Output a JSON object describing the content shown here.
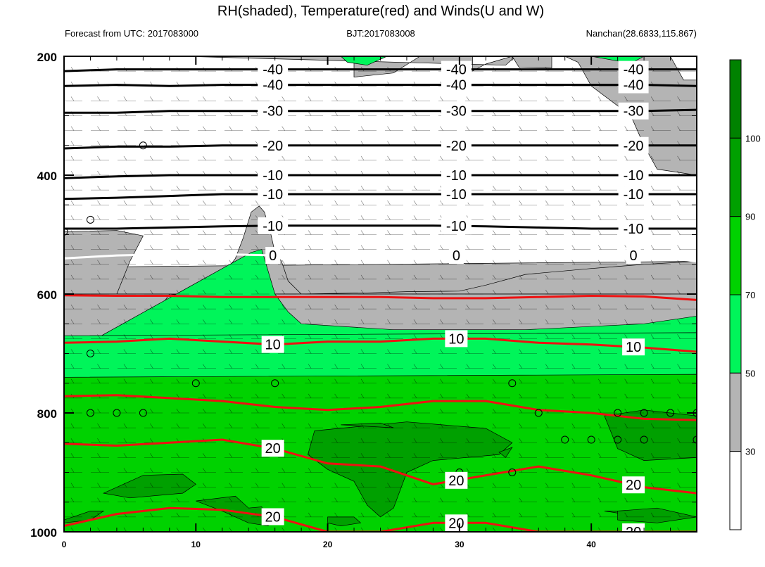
{
  "header": {
    "title": "RH(shaded), Temperature(red) and Winds(U and W)",
    "forecast": "Forecast from UTC: 2017083000",
    "bjt": "BJT:2017083008",
    "station": "Nanchan(28.6833,115.867)"
  },
  "chart_data": {
    "type": "contour",
    "title": "RH(shaded), Temperature(red) and Winds(U and W)",
    "x_axis": {
      "range": [
        0,
        48
      ],
      "ticks": [
        "0",
        "10",
        "20",
        "30",
        "40"
      ],
      "tick_values": [
        0,
        10,
        20,
        30,
        40
      ]
    },
    "y_axis": {
      "range": [
        1000,
        200
      ],
      "reversed": true,
      "ticks": [
        "200",
        "400",
        "600",
        "800",
        "1000"
      ],
      "tick_values": [
        200,
        400,
        600,
        800,
        1000
      ]
    },
    "rh_colorbar": {
      "labels": [
        "30",
        "50",
        "70",
        "90",
        "100"
      ],
      "bands": [
        {
          "lower": 0,
          "upper": 30,
          "color": "#ffffff"
        },
        {
          "lower": 30,
          "upper": 50,
          "color": "#b4b4b4"
        },
        {
          "lower": 50,
          "upper": 70,
          "color": "#00f55a"
        },
        {
          "lower": 70,
          "upper": 90,
          "color": "#00d200"
        },
        {
          "lower": 90,
          "upper": 100,
          "color": "#00a000"
        },
        {
          "lower": 100,
          "upper": 110,
          "color": "#008200"
        }
      ]
    },
    "rh_regions": [
      {
        "level": 30,
        "points": [
          [
            0,
            555
          ],
          [
            48,
            545
          ],
          [
            48,
            600
          ],
          [
            0,
            600
          ]
        ]
      },
      {
        "level": 30,
        "points": [
          [
            0,
            495
          ],
          [
            4,
            493
          ],
          [
            6,
            502
          ],
          [
            5,
            545
          ],
          [
            4,
            600
          ],
          [
            0,
            600
          ]
        ]
      },
      {
        "level": 30,
        "points": [
          [
            11,
            600
          ],
          [
            13,
            540
          ],
          [
            13.6,
            505
          ],
          [
            14.2,
            462
          ],
          [
            14.8,
            452
          ],
          [
            15.2,
            462
          ],
          [
            15.7,
            500
          ],
          [
            16,
            530
          ],
          [
            16.5,
            545
          ],
          [
            17,
            578
          ],
          [
            18,
            600
          ]
        ]
      },
      {
        "level": 30,
        "points": [
          [
            18,
            600
          ],
          [
            23,
            598
          ],
          [
            26,
            596
          ],
          [
            30,
            595
          ],
          [
            32,
            585
          ],
          [
            35,
            567
          ],
          [
            40,
            557
          ],
          [
            44,
            550
          ],
          [
            48,
            545
          ],
          [
            48,
            600
          ]
        ]
      },
      {
        "level": 30,
        "points": [
          [
            0,
            600
          ],
          [
            48,
            600
          ],
          [
            48,
            690
          ],
          [
            36,
            705
          ],
          [
            20,
            685
          ],
          [
            0,
            670
          ]
        ]
      },
      {
        "level": 30,
        "points": [
          [
            9,
            200
          ],
          [
            22,
            200
          ],
          [
            22,
            235
          ],
          [
            25,
            228
          ],
          [
            27,
            200
          ],
          [
            31,
            200
          ],
          [
            31,
            225
          ],
          [
            32,
            213
          ],
          [
            34,
            200
          ],
          [
            35,
            200
          ],
          [
            34,
            205
          ],
          [
            33.5,
            215
          ]
        ]
      },
      {
        "level": 30,
        "points": [
          [
            34,
            200
          ],
          [
            37,
            200
          ],
          [
            37,
            220
          ],
          [
            34.5,
            218
          ]
        ]
      },
      {
        "level": 30,
        "points": [
          [
            38,
            200
          ],
          [
            46,
            200
          ],
          [
            47,
            240
          ],
          [
            48,
            240
          ],
          [
            48,
            400
          ],
          [
            45,
            390
          ],
          [
            44,
            350
          ],
          [
            43,
            300
          ],
          [
            40,
            250
          ],
          [
            39,
            210
          ]
        ]
      },
      {
        "level": 30,
        "points": [
          [
            7.5,
            616
          ],
          [
            9,
            620
          ],
          [
            10,
            605
          ],
          [
            8,
            600
          ]
        ]
      },
      {
        "level": 50,
        "points": [
          [
            14.2,
            530
          ],
          [
            15,
            525
          ],
          [
            16,
            600
          ],
          [
            17,
            630
          ],
          [
            18,
            650
          ],
          [
            25,
            660
          ],
          [
            35,
            660
          ],
          [
            44,
            650
          ],
          [
            48,
            637
          ],
          [
            48,
            690
          ],
          [
            40,
            680
          ],
          [
            36,
            705
          ],
          [
            30,
            700
          ],
          [
            20,
            685
          ],
          [
            10,
            685
          ],
          [
            0,
            680
          ],
          [
            0,
            705
          ]
        ]
      },
      {
        "level": 50,
        "points": [
          [
            0,
            670
          ],
          [
            48,
            665
          ],
          [
            48,
            735
          ],
          [
            30,
            750
          ],
          [
            10,
            740
          ],
          [
            0,
            750
          ]
        ]
      },
      {
        "level": 50,
        "points": [
          [
            21,
            200
          ],
          [
            24.5,
            200
          ],
          [
            23,
            215
          ],
          [
            21.5,
            210
          ]
        ]
      },
      {
        "level": 50,
        "points": [
          [
            40,
            200
          ],
          [
            44,
            200
          ],
          [
            43,
            212
          ]
        ]
      },
      {
        "level": 50,
        "points": [
          [
            7,
            985
          ],
          [
            10,
            982
          ],
          [
            12,
            990
          ],
          [
            12,
            1000
          ],
          [
            7,
            1000
          ]
        ]
      },
      {
        "level": 50,
        "points": [
          [
            31,
            980
          ],
          [
            34,
            982
          ],
          [
            35,
            1000
          ],
          [
            30,
            1000
          ]
        ]
      },
      {
        "level": 70,
        "points": [
          [
            0,
            740
          ],
          [
            48,
            735
          ],
          [
            48,
            1000
          ],
          [
            0,
            1000
          ]
        ]
      },
      {
        "level": 90,
        "points": [
          [
            19,
            830
          ],
          [
            26,
            815
          ],
          [
            32,
            826
          ],
          [
            34,
            850
          ],
          [
            33,
            870
          ],
          [
            28,
            880
          ],
          [
            26,
            900
          ],
          [
            25,
            960
          ],
          [
            24,
            975
          ],
          [
            23,
            955
          ],
          [
            22,
            915
          ],
          [
            20,
            895
          ],
          [
            18.5,
            870
          ]
        ]
      },
      {
        "level": 90,
        "points": [
          [
            33,
            866
          ],
          [
            34,
            858
          ],
          [
            33.5,
            875
          ]
        ]
      },
      {
        "level": 90,
        "points": [
          [
            41,
            805
          ],
          [
            44,
            795
          ],
          [
            46,
            800
          ],
          [
            48,
            805
          ],
          [
            48,
            875
          ],
          [
            44,
            880
          ],
          [
            42,
            860
          ]
        ]
      },
      {
        "level": 90,
        "points": [
          [
            3,
            935
          ],
          [
            6,
            905
          ],
          [
            9,
            903
          ],
          [
            10,
            920
          ],
          [
            9,
            935
          ],
          [
            5,
            943
          ]
        ]
      },
      {
        "level": 90,
        "points": [
          [
            10,
            948
          ],
          [
            13,
            940
          ],
          [
            14,
            960
          ],
          [
            15,
            958
          ],
          [
            15.5,
            990
          ],
          [
            14,
            985
          ],
          [
            12,
            965
          ]
        ]
      },
      {
        "level": 90,
        "points": [
          [
            0,
            980
          ],
          [
            2,
            965
          ],
          [
            3,
            965
          ],
          [
            2,
            980
          ],
          [
            0,
            985
          ]
        ]
      },
      {
        "level": 90,
        "points": [
          [
            20,
            975
          ],
          [
            22,
            975
          ],
          [
            22.5,
            985
          ],
          [
            21,
            990
          ],
          [
            20,
            985
          ]
        ]
      },
      {
        "level": 90,
        "points": [
          [
            41,
            965
          ],
          [
            43,
            965
          ],
          [
            43,
            972
          ]
        ]
      },
      {
        "level": 90,
        "points": [
          [
            42,
            965
          ],
          [
            45,
            960
          ],
          [
            48,
            975
          ],
          [
            45,
            985
          ],
          [
            42,
            980
          ]
        ]
      },
      {
        "level": 90,
        "points": [
          [
            21,
            820
          ],
          [
            24,
            817
          ],
          [
            25,
            825
          ]
        ]
      }
    ],
    "temperature_contours": [
      {
        "label": "-40",
        "color": "black",
        "levels": [
          225,
          222,
          222,
          222,
          222,
          222,
          222,
          222,
          222,
          222,
          222,
          222,
          222
        ]
      },
      {
        "label": "-40",
        "color": "black",
        "levels": [
          250,
          248,
          250,
          248,
          248,
          248,
          248,
          248,
          248,
          248,
          248,
          248,
          250
        ]
      },
      {
        "label": "-30",
        "color": "black",
        "levels": [
          295,
          295,
          292,
          292,
          292,
          292,
          292,
          292,
          292,
          292,
          292,
          292,
          290
        ]
      },
      {
        "label": "-20",
        "color": "black",
        "levels": [
          355,
          352,
          352,
          350,
          350,
          350,
          350,
          350,
          350,
          350,
          350,
          350,
          350
        ]
      },
      {
        "label": "-10",
        "color": "black",
        "levels": [
          405,
          402,
          400,
          400,
          400,
          400,
          400,
          400,
          400,
          400,
          400,
          400,
          400
        ]
      },
      {
        "label": "-10",
        "color": "black",
        "levels": [
          440,
          438,
          435,
          432,
          432,
          432,
          432,
          432,
          432,
          432,
          432,
          432,
          432
        ]
      },
      {
        "label": "-10",
        "color": "black",
        "levels": [
          490,
          490,
          488,
          486,
          485,
          485,
          485,
          485,
          486,
          488,
          490,
          490,
          490
        ]
      },
      {
        "label": "0",
        "color": "white",
        "levels": [
          540,
          535,
          533,
          533,
          535,
          535,
          535,
          535,
          535,
          535,
          535,
          535,
          545
        ]
      },
      {
        "label": "",
        "color": "red",
        "levels": [
          602,
          603,
          603,
          605,
          605,
          605,
          605,
          607,
          607,
          605,
          603,
          604,
          610
        ]
      },
      {
        "label": "10",
        "color": "red",
        "levels": [
          682,
          680,
          675,
          680,
          685,
          680,
          680,
          675,
          675,
          682,
          685,
          690,
          697
        ]
      },
      {
        "label": "",
        "color": "red",
        "levels": [
          772,
          770,
          775,
          780,
          790,
          795,
          790,
          780,
          780,
          795,
          800,
          810,
          812
        ]
      },
      {
        "label": "20",
        "color": "red",
        "levels": [
          852,
          855,
          850,
          845,
          860,
          885,
          890,
          920,
          905,
          890,
          905,
          925,
          935
        ]
      },
      {
        "label": "20",
        "color": "red",
        "levels": [
          990,
          970,
          960,
          963,
          975,
          1000,
          1000,
          985,
          985,
          1000,
          1000,
          1000,
          1000
        ]
      }
    ],
    "temperature_x": [
      0,
      4,
      8,
      12,
      16,
      20,
      24,
      28,
      32,
      36,
      40,
      44,
      48
    ],
    "calm_markers": [
      [
        0,
        495
      ],
      [
        2,
        475
      ],
      [
        6,
        350
      ],
      [
        2,
        700
      ],
      [
        2,
        800
      ],
      [
        4,
        800
      ],
      [
        6,
        800
      ],
      [
        10,
        750
      ],
      [
        16,
        750
      ],
      [
        34,
        750
      ],
      [
        36,
        800
      ],
      [
        38,
        845
      ],
      [
        40,
        845
      ],
      [
        42,
        800
      ],
      [
        42,
        845
      ],
      [
        44,
        800
      ],
      [
        44,
        845
      ],
      [
        46,
        800
      ],
      [
        48,
        800
      ],
      [
        48,
        845
      ],
      [
        30,
        900
      ],
      [
        34,
        900
      ]
    ]
  }
}
